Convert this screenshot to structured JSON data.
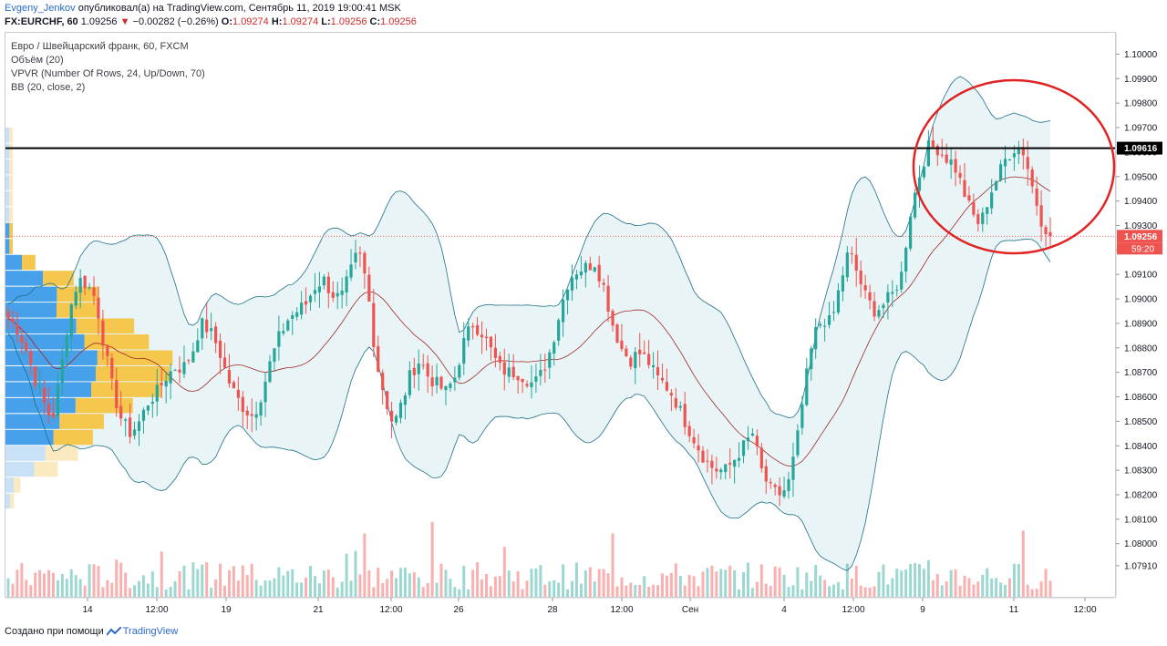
{
  "header": {
    "author": "Evgeny_Jenkov",
    "published_text": "опубликовал(а) на TradingView.com, Сентябрь 11, 2019 19:00:41 MSK"
  },
  "symbol_line": {
    "symbol": "FX:EURCHF, 60",
    "last": "1.09256",
    "arrow": "▼",
    "change": "−0.00282 (−0.26%)",
    "o_label": "O:",
    "o_value": "1.09274",
    "h_label": "H:",
    "h_value": "1.09274",
    "l_label": "L:",
    "l_value": "1.09256",
    "c_label": "C:",
    "c_value": "1.09256"
  },
  "legend": {
    "title": "Евро / Швейцарский франк, 60, FXCM",
    "volume": "Объём (20)",
    "vpvr": "VPVR (Number Of Rows, 24, Up/Down, 70)",
    "bb": "BB (20, close, 2)"
  },
  "footer": {
    "created_with": "Создано при помощи",
    "brand": "TradingView"
  },
  "colors": {
    "up": "#26a69a",
    "down": "#ef5350",
    "bb_band": "#1e6f86",
    "bb_basis": "#a02828",
    "bb_fill": "#e9f4f6",
    "vp_up": "#3d9be9",
    "vp_down": "#f6c443",
    "vp_up_light": "#c6dff5",
    "vp_down_light": "#fbe8bd",
    "level_line": "#000000",
    "highlight_circle": "#e02424",
    "current_price": "#ef5350"
  },
  "chart_data": {
    "type": "candlestick",
    "symbol": "FX:EURCHF",
    "timeframe": "60",
    "y_axis": {
      "range": [
        1.0785,
        1.1005
      ],
      "ticks": [
        "1.07910",
        "1.08000",
        "1.08100",
        "1.08200",
        "1.08300",
        "1.08400",
        "1.08500",
        "1.08600",
        "1.08700",
        "1.08800",
        "1.08900",
        "1.09000",
        "1.09100",
        "1.09200",
        "1.09300",
        "1.09400",
        "1.09500",
        "1.09600",
        "1.09700",
        "1.09800",
        "1.09900",
        "1.10000"
      ]
    },
    "x_axis": {
      "labels": [
        "14",
        "12:00",
        "19",
        "21",
        "12:00",
        "26",
        "28",
        "12:00",
        "Сен",
        "4",
        "12:00",
        "9",
        "11",
        "12:00"
      ]
    },
    "close_path": [
      1.0892,
      1.0888,
      1.088,
      1.0868,
      1.0858,
      1.085,
      1.087,
      1.0895,
      1.0908,
      1.0906,
      1.09,
      1.088,
      1.0862,
      1.085,
      1.0845,
      1.085,
      1.0858,
      1.0862,
      1.0868,
      1.0872,
      1.0872,
      1.0878,
      1.089,
      1.0887,
      1.088,
      1.0868,
      1.086,
      1.0855,
      1.0852,
      1.0862,
      1.0875,
      1.0885,
      1.0892,
      1.0895,
      1.0898,
      1.0905,
      1.0908,
      1.0902,
      1.09,
      1.091,
      1.092,
      1.0905,
      1.0875,
      1.086,
      1.0848,
      1.0858,
      1.087,
      1.0875,
      1.0868,
      1.0865,
      1.0862,
      1.0868,
      1.0882,
      1.089,
      1.0887,
      1.088,
      1.0872,
      1.087,
      1.087,
      1.0868,
      1.0865,
      1.087,
      1.088,
      1.0895,
      1.0908,
      1.0912,
      1.0913,
      1.0915,
      1.0905,
      1.089,
      1.088,
      1.0875,
      1.0878,
      1.0875,
      1.0868,
      1.0865,
      1.086,
      1.0852,
      1.0845,
      1.0838,
      1.0832,
      1.083,
      1.083,
      1.0835,
      1.084,
      1.0845,
      1.083,
      1.0822,
      1.082,
      1.0823,
      1.084,
      1.0865,
      1.0885,
      1.0892,
      1.089,
      1.0906,
      1.092,
      1.091,
      1.09,
      1.0895,
      1.0898,
      1.0902,
      1.091,
      1.0935,
      1.095,
      1.0962,
      1.0962,
      1.0958,
      1.0955,
      1.0945,
      1.0935,
      1.093,
      1.0942,
      1.095,
      1.0958,
      1.0962,
      1.096,
      1.0945,
      1.0932,
      1.0926
    ],
    "current_price": "1.09256",
    "current_countdown": "59:20",
    "horizontal_level": "1.09616",
    "indicators": [
      "Volume (20)",
      "VPVR (24 rows, Up/Down, 70)",
      "Bollinger Bands (20, close, 2)"
    ]
  }
}
